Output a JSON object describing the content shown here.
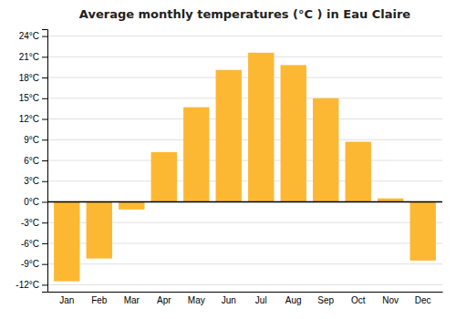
{
  "chart_data": {
    "type": "bar",
    "title": "Average monthly temperatures (°C ) in Eau Claire",
    "categories": [
      "Jan",
      "Feb",
      "Mar",
      "Apr",
      "May",
      "Jun",
      "Jul",
      "Aug",
      "Sep",
      "Oct",
      "Nov",
      "Dec"
    ],
    "values": [
      -11.5,
      -8.2,
      -1.1,
      7.2,
      13.7,
      19.1,
      21.6,
      19.8,
      15.0,
      8.7,
      0.5,
      -8.5
    ],
    "color": "#FDB833",
    "ylim": [
      -13,
      25
    ],
    "yticks": [
      {
        "value": -12,
        "label": "-12°C"
      },
      {
        "value": -9,
        "label": "-9°C"
      },
      {
        "value": -6,
        "label": "-6°C"
      },
      {
        "value": -3,
        "label": "-3°C"
      },
      {
        "value": 0,
        "label": "0°C"
      },
      {
        "value": 3,
        "label": "3°C"
      },
      {
        "value": 6,
        "label": "6°C"
      },
      {
        "value": 9,
        "label": "9°C"
      },
      {
        "value": 12,
        "label": "12°C"
      },
      {
        "value": 15,
        "label": "15°C"
      },
      {
        "value": 18,
        "label": "18°C"
      },
      {
        "value": 21,
        "label": "21°C"
      },
      {
        "value": 24,
        "label": "24°C"
      }
    ],
    "grid": true
  }
}
